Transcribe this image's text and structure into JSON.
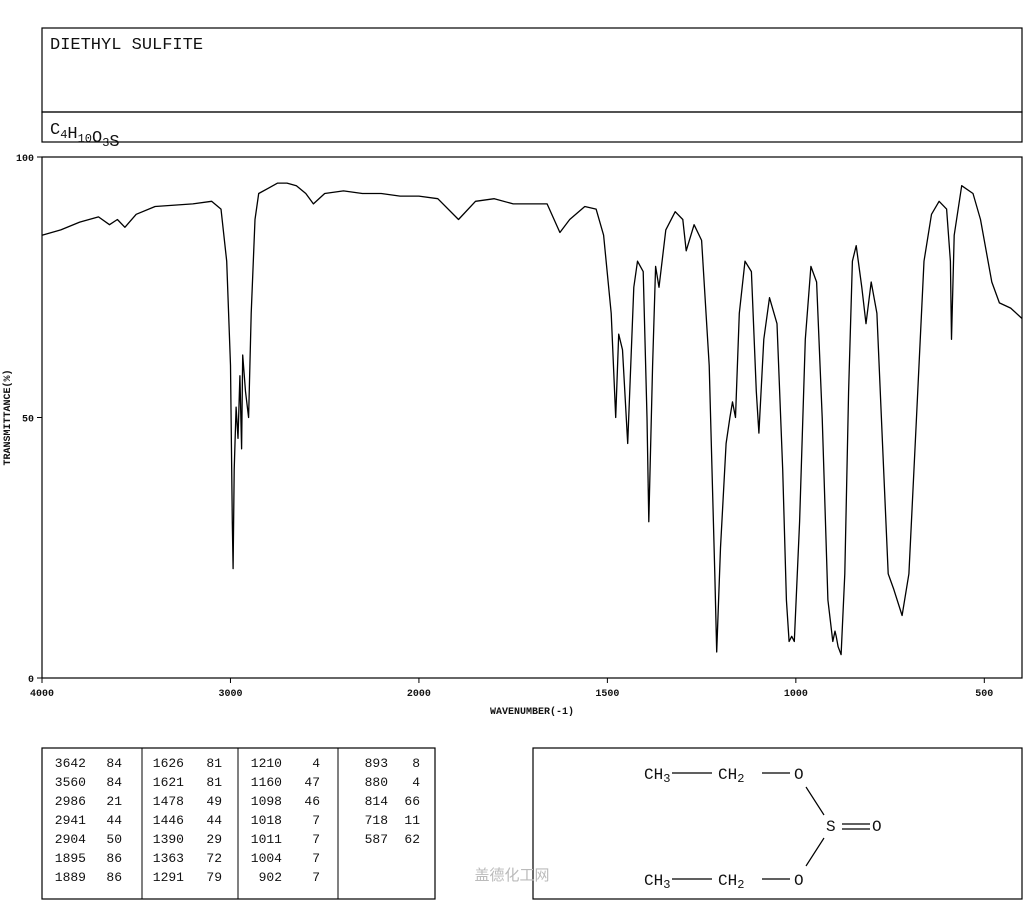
{
  "header": {
    "title": "DIETHYL SULFITE",
    "formula": [
      {
        "el": "C",
        "n": 4
      },
      {
        "el": "H",
        "n": 10
      },
      {
        "el": "O",
        "n": 3
      },
      {
        "el": "S"
      }
    ]
  },
  "chart_data": {
    "type": "line",
    "x_label": "WAVENUMBER(-1)",
    "y_label": "TRANSMITTANCE(%)",
    "color": "#000000",
    "xlim": [
      4000,
      400
    ],
    "xticks": [
      4000,
      3000,
      2000,
      1500,
      1000,
      500
    ],
    "ylim": [
      0,
      100
    ],
    "yticks": [
      0,
      50,
      100
    ],
    "grid": false,
    "x": [
      4000,
      3900,
      3800,
      3700,
      3642,
      3600,
      3560,
      3500,
      3400,
      3200,
      3100,
      3050,
      3020,
      3000,
      2990,
      2986,
      2980,
      2970,
      2960,
      2950,
      2941,
      2935,
      2920,
      2904,
      2890,
      2870,
      2850,
      2800,
      2750,
      2700,
      2650,
      2600,
      2560,
      2500,
      2400,
      2300,
      2200,
      2100,
      2000,
      1950,
      1895,
      1850,
      1800,
      1750,
      1700,
      1660,
      1626,
      1600,
      1560,
      1530,
      1510,
      1490,
      1478,
      1470,
      1460,
      1446,
      1430,
      1420,
      1405,
      1395,
      1390,
      1380,
      1372,
      1363,
      1345,
      1320,
      1300,
      1291,
      1270,
      1250,
      1230,
      1215,
      1210,
      1200,
      1185,
      1175,
      1168,
      1160,
      1150,
      1135,
      1118,
      1105,
      1098,
      1085,
      1070,
      1050,
      1035,
      1025,
      1018,
      1011,
      1004,
      990,
      975,
      960,
      945,
      930,
      915,
      902,
      896,
      893,
      888,
      880,
      870,
      860,
      850,
      840,
      825,
      814,
      800,
      785,
      770,
      755,
      740,
      718,
      700,
      680,
      660,
      640,
      620,
      600,
      590,
      587,
      580,
      560,
      530,
      510,
      480,
      460,
      430,
      400
    ],
    "values": [
      85,
      86,
      87.5,
      88.5,
      87,
      88,
      86.5,
      89,
      90.5,
      91,
      91.5,
      90,
      80,
      60,
      30,
      21,
      40,
      52,
      46,
      58,
      44,
      62,
      55,
      50,
      70,
      88,
      93,
      94,
      95,
      95,
      94.5,
      93,
      91,
      93,
      93.5,
      93,
      93,
      92.5,
      92.5,
      92,
      88,
      91.5,
      92,
      91,
      91,
      91,
      85.5,
      88,
      90.5,
      90,
      85,
      70,
      50,
      66,
      63,
      45,
      75,
      80,
      78,
      50,
      30,
      60,
      79,
      75,
      86,
      89.5,
      88,
      82,
      87,
      84,
      60,
      20,
      5,
      25,
      45,
      50,
      53,
      50,
      70,
      80,
      78,
      55,
      47,
      65,
      73,
      68,
      40,
      15,
      7,
      8,
      7,
      30,
      65,
      79,
      76,
      50,
      15,
      7,
      9,
      8,
      6,
      4.5,
      20,
      55,
      80,
      83,
      75,
      68,
      76,
      70,
      45,
      20,
      17,
      12,
      20,
      50,
      80,
      89,
      91.5,
      90,
      80,
      65,
      85,
      94.5,
      93,
      88,
      76,
      72,
      71,
      69
    ]
  },
  "peak_table": [
    [
      [
        3642,
        84
      ],
      [
        3560,
        84
      ],
      [
        2986,
        21
      ],
      [
        2941,
        44
      ],
      [
        2904,
        50
      ],
      [
        1895,
        86
      ],
      [
        1889,
        86
      ]
    ],
    [
      [
        1626,
        81
      ],
      [
        1621,
        81
      ],
      [
        1478,
        49
      ],
      [
        1446,
        44
      ],
      [
        1390,
        29
      ],
      [
        1363,
        72
      ],
      [
        1291,
        79
      ]
    ],
    [
      [
        1210,
        4
      ],
      [
        1160,
        47
      ],
      [
        1098,
        46
      ],
      [
        1018,
        7
      ],
      [
        1011,
        7
      ],
      [
        1004,
        7
      ],
      [
        902,
        7
      ]
    ],
    [
      [
        893,
        8
      ],
      [
        880,
        4
      ],
      [
        814,
        66
      ],
      [
        718,
        11
      ],
      [
        587,
        62
      ]
    ]
  ],
  "structure": {
    "atoms": [
      {
        "symbol": "CH",
        "sub": 3
      },
      {
        "symbol": "CH",
        "sub": 2
      },
      {
        "symbol": "O"
      },
      {
        "symbol": "S"
      },
      {
        "symbol": "O"
      },
      {
        "symbol": "CH",
        "sub": 3
      },
      {
        "symbol": "CH",
        "sub": 2
      },
      {
        "symbol": "O"
      }
    ]
  },
  "watermark": "盖德化工网"
}
